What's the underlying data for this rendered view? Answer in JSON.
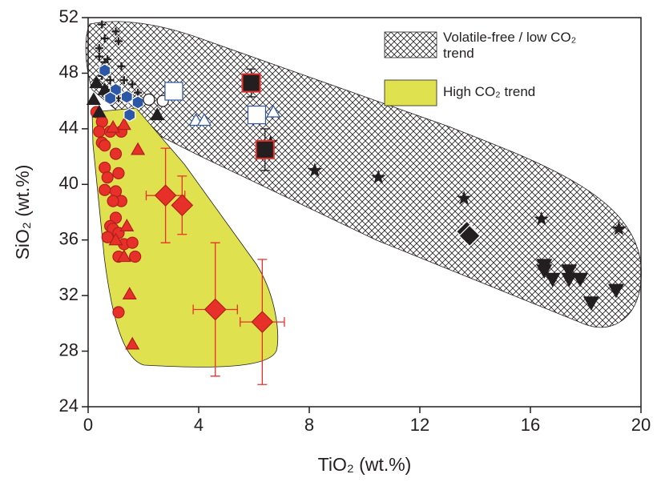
{
  "chart_data": {
    "type": "scatter",
    "x_label": "TiO₂ (wt.%)",
    "y_label": "SiO₂ (wt.%)",
    "xlim": [
      0,
      20
    ],
    "xticks": [
      0,
      4,
      8,
      12,
      16,
      20
    ],
    "ylim": [
      24,
      52
    ],
    "yticks": [
      24,
      28,
      32,
      36,
      40,
      44,
      48,
      52
    ],
    "regions": [
      {
        "name": "Volatile-free / low CO₂ trend",
        "pattern": "crosshatch"
      },
      {
        "name": "High CO₂ trend",
        "color": "#dfe14f"
      }
    ],
    "series": [
      {
        "marker": "star",
        "color": "#231f20",
        "fill": "#231f20",
        "x": [
          6.6,
          8.2,
          10.5,
          13.6,
          16.4,
          19.2
        ],
        "y": [
          43,
          41,
          40.5,
          39,
          37.5,
          36.8
        ]
      },
      {
        "marker": "tri-down",
        "color": "#231f20",
        "fill": "#231f20",
        "x": [
          16.5,
          16.5,
          16.8,
          17.4,
          17.4,
          17.8,
          18.2,
          19.1
        ],
        "y": [
          34.2,
          33.8,
          33.2,
          33.8,
          33.2,
          33.2,
          31.5,
          32.4
        ]
      },
      {
        "marker": "diamond",
        "color": "#ffffff",
        "fill": "#231f20",
        "x": [
          13.7,
          13.8
        ],
        "y": [
          36.6,
          36.3
        ]
      },
      {
        "marker": "square",
        "color": "#e8302a",
        "fill": "#231f20",
        "x": [
          5.9,
          6.4
        ],
        "y": [
          47.3,
          42.5
        ],
        "yerr": [
          1,
          1.5
        ]
      },
      {
        "marker": "diamond",
        "color": "#b0201b",
        "fill": "#e8302a",
        "x": [
          2.8,
          3.4,
          4.6,
          6.3
        ],
        "y": [
          39.2,
          38.5,
          31,
          30.1
        ],
        "yerr": [
          3.4,
          2.1,
          4.8,
          4.5
        ],
        "xerr": [
          0.7,
          null,
          0.8,
          0.8
        ]
      },
      {
        "marker": "circle",
        "color": "#b0201b",
        "fill": "#e8302a",
        "x": [
          0.3,
          0.5,
          0.4,
          0.8,
          1.2,
          0.5,
          0.6,
          1.0,
          0.6,
          0.7,
          1.1,
          0.6,
          1.0,
          1.2,
          0.9,
          1.0,
          0.8,
          0.9,
          0.7,
          1.3,
          1.6,
          1.1,
          1.7,
          1.1,
          1.1
        ],
        "y": [
          45.2,
          44.5,
          43.8,
          43.8,
          43.8,
          43,
          42.8,
          42.2,
          41.2,
          40.5,
          40.8,
          39.6,
          39.5,
          38.8,
          38.8,
          37.6,
          37,
          36.8,
          36.2,
          35.7,
          35.8,
          34.8,
          34.8,
          30.8,
          36.5
        ]
      },
      {
        "marker": "triangle",
        "color": "#b0201b",
        "fill": "#e8302a",
        "x": [
          1.8,
          0.9,
          1.3,
          1.0,
          1.3,
          1.5,
          1.6,
          1.4
        ],
        "y": [
          42.5,
          44.1,
          44.3,
          36,
          34.8,
          32.1,
          28.5,
          37
        ]
      },
      {
        "marker": "plus",
        "color": "#231f20",
        "fill": "#231f20",
        "x": [
          0.5,
          0.6,
          1.0,
          1.1,
          0.4,
          0.7,
          1.2,
          0.6,
          0.5,
          0.8,
          1.3,
          1.6,
          1.8,
          1.1,
          0.7,
          0.4
        ],
        "y": [
          51.5,
          50.5,
          51,
          50.3,
          49.8,
          49,
          48.5,
          48.8,
          47.8,
          47.5,
          47.5,
          47.2,
          46.6,
          46.2,
          46.8,
          49.2
        ]
      },
      {
        "marker": "triangle",
        "color": "#231f20",
        "fill": "#231f20",
        "x": [
          0.3,
          0.2,
          0.4,
          2.5,
          0.6
        ],
        "y": [
          47.3,
          46.1,
          45.2,
          45,
          46.8
        ]
      },
      {
        "marker": "hexagon",
        "color": "#ffffff",
        "fill": "#2b57a6",
        "x": [
          0.6,
          1.0,
          1.4,
          1.8,
          1.5,
          0.8
        ],
        "y": [
          48.2,
          46.8,
          46.3,
          45.9,
          45,
          46.2
        ]
      },
      {
        "marker": "circle",
        "color": "#231f20",
        "fill": "#ffffff",
        "x": [
          2.2,
          2.7
        ],
        "y": [
          46.1,
          46
        ]
      },
      {
        "marker": "square",
        "color": "#2b57a6",
        "fill": "#ffffff",
        "x": [
          3.1,
          6.1
        ],
        "y": [
          46.7,
          45
        ]
      },
      {
        "marker": "triangle",
        "color": "#2b57a6",
        "fill": "#ffffff",
        "x": [
          3.9,
          4.2,
          6.7
        ],
        "y": [
          44.6,
          44.6,
          45.2
        ]
      }
    ]
  }
}
